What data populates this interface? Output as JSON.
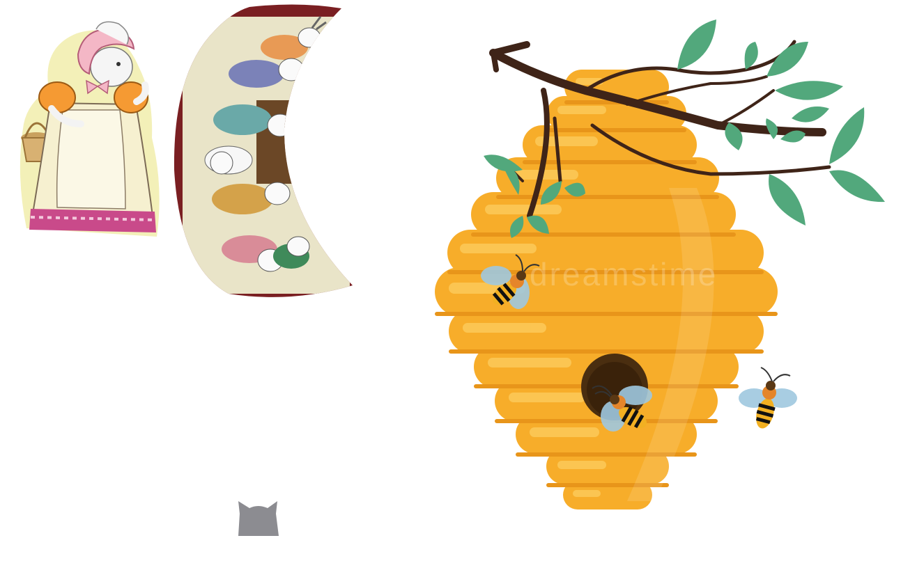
{
  "scene": {
    "background": "#ffffff",
    "watermark": "dreamstime",
    "sprites": [
      {
        "name": "mother-rabbit-illustration",
        "icon": "rabbit-in-dress-with-basket"
      },
      {
        "name": "rabbit-children-crescent-illustration",
        "icon": "row-of-rabbits-in-sweaters"
      },
      {
        "name": "beehive-illustration",
        "icon": "beehive-on-branch"
      },
      {
        "name": "gray-cat-head",
        "icon": "cat-head"
      }
    ],
    "bees": [
      {
        "name": "bee-left"
      },
      {
        "name": "bee-at-hole"
      },
      {
        "name": "bee-right"
      }
    ]
  },
  "colors": {
    "hive_body": "#f7ad2a",
    "hive_highlight": "#fcc857",
    "hive_shadow": "#e8951a",
    "branch": "#3f2418",
    "leaf": "#52a87c",
    "dress": "#f6f0d0",
    "sleeves": "#f59a33",
    "bonnet": "#f4b7c6",
    "frame": "#7a1f22",
    "cat": "#8c8c91"
  }
}
